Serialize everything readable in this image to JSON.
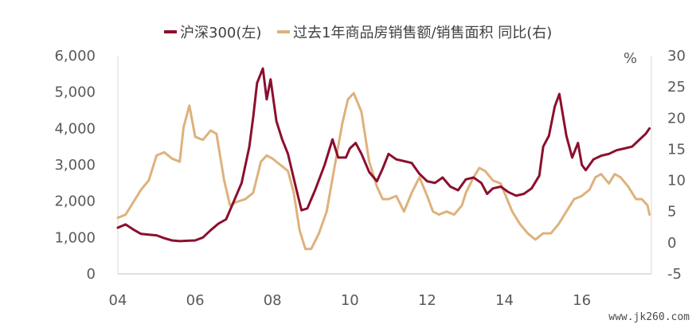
{
  "chart_data": {
    "type": "line",
    "legend_position": "top-center",
    "grid": false,
    "x_ticks": [
      "04",
      "06",
      "08",
      "10",
      "12",
      "14",
      "16"
    ],
    "y_left": {
      "range": [
        0,
        6000
      ],
      "ticks": [
        "0",
        "1,000",
        "2,000",
        "3,000",
        "4,000",
        "5,000",
        "6,000"
      ]
    },
    "y_right": {
      "range": [
        -5,
        30
      ],
      "unit": "%",
      "ticks": [
        "-5",
        "0",
        "5",
        "10",
        "15",
        "20",
        "25",
        "30"
      ]
    },
    "series": [
      {
        "name": "沪深300(左)",
        "axis": "left",
        "color": "#8b0f2d",
        "points": [
          [
            2004.0,
            1270
          ],
          [
            2004.2,
            1360
          ],
          [
            2004.4,
            1220
          ],
          [
            2004.6,
            1100
          ],
          [
            2004.8,
            1080
          ],
          [
            2005.0,
            1060
          ],
          [
            2005.2,
            980
          ],
          [
            2005.4,
            920
          ],
          [
            2005.6,
            900
          ],
          [
            2005.8,
            910
          ],
          [
            2006.0,
            920
          ],
          [
            2006.2,
            1000
          ],
          [
            2006.4,
            1200
          ],
          [
            2006.6,
            1380
          ],
          [
            2006.8,
            1500
          ],
          [
            2007.0,
            2000
          ],
          [
            2007.2,
            2500
          ],
          [
            2007.4,
            3500
          ],
          [
            2007.5,
            4300
          ],
          [
            2007.6,
            5250
          ],
          [
            2007.75,
            5650
          ],
          [
            2007.85,
            4800
          ],
          [
            2007.95,
            5350
          ],
          [
            2008.1,
            4200
          ],
          [
            2008.25,
            3700
          ],
          [
            2008.4,
            3300
          ],
          [
            2008.6,
            2400
          ],
          [
            2008.75,
            1750
          ],
          [
            2008.9,
            1800
          ],
          [
            2009.1,
            2300
          ],
          [
            2009.35,
            3000
          ],
          [
            2009.55,
            3700
          ],
          [
            2009.7,
            3200
          ],
          [
            2009.9,
            3200
          ],
          [
            2010.0,
            3450
          ],
          [
            2010.15,
            3600
          ],
          [
            2010.3,
            3300
          ],
          [
            2010.5,
            2800
          ],
          [
            2010.7,
            2550
          ],
          [
            2010.85,
            2900
          ],
          [
            2011.0,
            3300
          ],
          [
            2011.2,
            3150
          ],
          [
            2011.4,
            3100
          ],
          [
            2011.6,
            3050
          ],
          [
            2011.8,
            2750
          ],
          [
            2012.0,
            2550
          ],
          [
            2012.2,
            2500
          ],
          [
            2012.4,
            2650
          ],
          [
            2012.6,
            2400
          ],
          [
            2012.8,
            2300
          ],
          [
            2013.0,
            2600
          ],
          [
            2013.2,
            2650
          ],
          [
            2013.4,
            2500
          ],
          [
            2013.55,
            2200
          ],
          [
            2013.7,
            2350
          ],
          [
            2013.9,
            2400
          ],
          [
            2014.1,
            2250
          ],
          [
            2014.3,
            2150
          ],
          [
            2014.5,
            2200
          ],
          [
            2014.7,
            2350
          ],
          [
            2014.9,
            2700
          ],
          [
            2015.0,
            3500
          ],
          [
            2015.15,
            3800
          ],
          [
            2015.3,
            4600
          ],
          [
            2015.42,
            4950
          ],
          [
            2015.6,
            3800
          ],
          [
            2015.75,
            3200
          ],
          [
            2015.9,
            3600
          ],
          [
            2016.0,
            3000
          ],
          [
            2016.1,
            2850
          ],
          [
            2016.3,
            3150
          ],
          [
            2016.5,
            3250
          ],
          [
            2016.7,
            3300
          ],
          [
            2016.9,
            3400
          ],
          [
            2017.1,
            3450
          ],
          [
            2017.3,
            3500
          ],
          [
            2017.5,
            3700
          ],
          [
            2017.65,
            3850
          ],
          [
            2017.75,
            4000
          ]
        ]
      },
      {
        "name": "过去1年商品房销售额/销售面积 同比(右)",
        "axis": "right",
        "color": "#ddb27c",
        "points": [
          [
            2004.0,
            4
          ],
          [
            2004.2,
            4.5
          ],
          [
            2004.4,
            6.5
          ],
          [
            2004.6,
            8.5
          ],
          [
            2004.8,
            10
          ],
          [
            2005.0,
            14
          ],
          [
            2005.2,
            14.5
          ],
          [
            2005.4,
            13.5
          ],
          [
            2005.6,
            13
          ],
          [
            2005.7,
            18.5
          ],
          [
            2005.85,
            22
          ],
          [
            2006.0,
            17
          ],
          [
            2006.2,
            16.5
          ],
          [
            2006.4,
            18
          ],
          [
            2006.55,
            17.5
          ],
          [
            2006.75,
            10
          ],
          [
            2006.9,
            6
          ],
          [
            2007.05,
            6.5
          ],
          [
            2007.3,
            7
          ],
          [
            2007.5,
            8
          ],
          [
            2007.7,
            13
          ],
          [
            2007.85,
            14
          ],
          [
            2008.0,
            13.5
          ],
          [
            2008.2,
            12.5
          ],
          [
            2008.4,
            11.5
          ],
          [
            2008.55,
            8
          ],
          [
            2008.7,
            2
          ],
          [
            2008.85,
            -1
          ],
          [
            2009.0,
            -1
          ],
          [
            2009.2,
            1.5
          ],
          [
            2009.4,
            5
          ],
          [
            2009.6,
            12
          ],
          [
            2009.8,
            19
          ],
          [
            2009.95,
            23
          ],
          [
            2010.1,
            24
          ],
          [
            2010.3,
            21
          ],
          [
            2010.5,
            13
          ],
          [
            2010.7,
            9
          ],
          [
            2010.85,
            7
          ],
          [
            2011.0,
            7
          ],
          [
            2011.2,
            7.5
          ],
          [
            2011.4,
            5
          ],
          [
            2011.6,
            8
          ],
          [
            2011.8,
            10.5
          ],
          [
            2012.0,
            7.5
          ],
          [
            2012.15,
            5
          ],
          [
            2012.3,
            4.5
          ],
          [
            2012.5,
            5
          ],
          [
            2012.7,
            4.5
          ],
          [
            2012.9,
            6
          ],
          [
            2013.0,
            8
          ],
          [
            2013.2,
            10.5
          ],
          [
            2013.35,
            12
          ],
          [
            2013.5,
            11.5
          ],
          [
            2013.7,
            10
          ],
          [
            2013.9,
            9.5
          ],
          [
            2014.0,
            8
          ],
          [
            2014.2,
            5
          ],
          [
            2014.4,
            3
          ],
          [
            2014.6,
            1.5
          ],
          [
            2014.8,
            0.5
          ],
          [
            2015.0,
            1.5
          ],
          [
            2015.2,
            1.5
          ],
          [
            2015.4,
            3
          ],
          [
            2015.6,
            5
          ],
          [
            2015.8,
            7
          ],
          [
            2016.0,
            7.5
          ],
          [
            2016.2,
            8.5
          ],
          [
            2016.35,
            10.5
          ],
          [
            2016.5,
            11
          ],
          [
            2016.7,
            9.5
          ],
          [
            2016.85,
            11
          ],
          [
            2017.0,
            10.5
          ],
          [
            2017.2,
            9
          ],
          [
            2017.4,
            7
          ],
          [
            2017.55,
            7
          ],
          [
            2017.7,
            6
          ],
          [
            2017.75,
            4.5
          ]
        ]
      }
    ]
  },
  "watermark": "www.jk260.com"
}
